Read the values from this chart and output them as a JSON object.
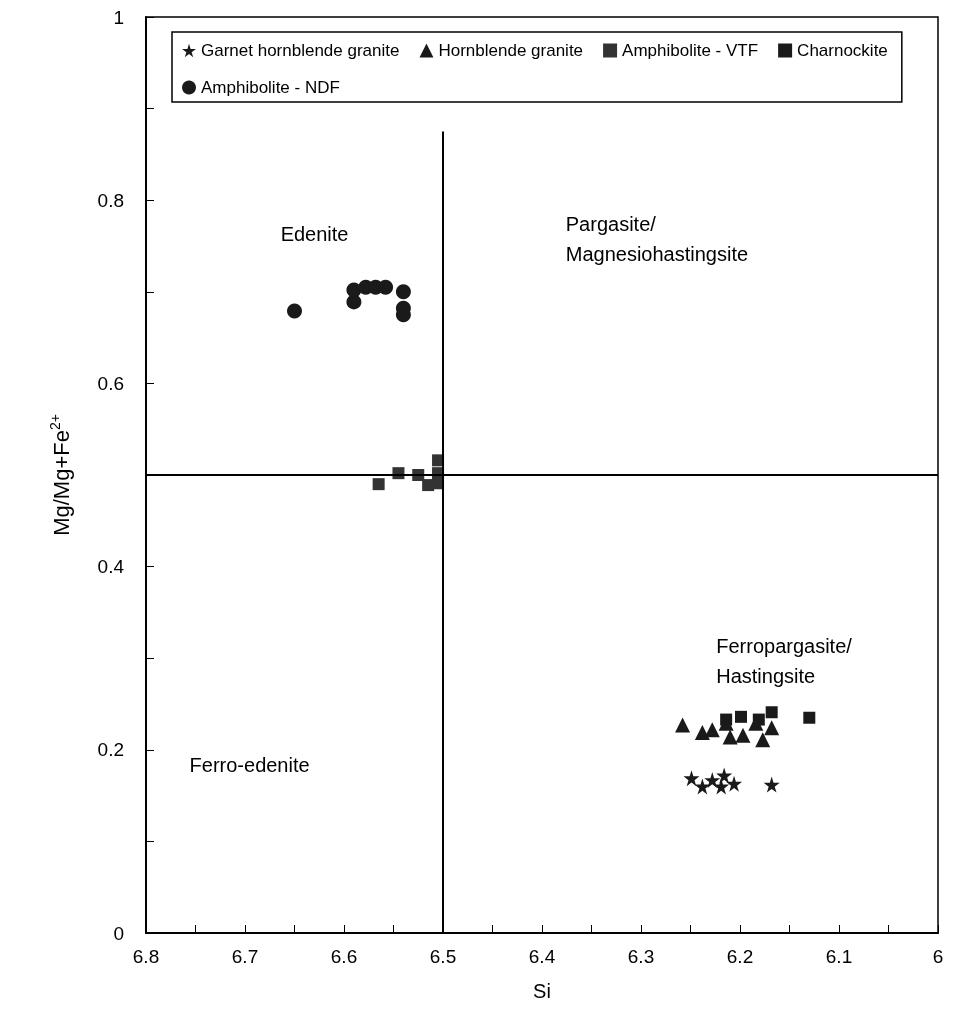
{
  "chart_data": {
    "type": "scatter",
    "xlabel": "Si",
    "ylabel": "Mg/Mg+Fe$^{2+}$",
    "xlim": [
      6.8,
      6
    ],
    "ylim": [
      0,
      1
    ],
    "xticks": [
      6.8,
      {
        "value": 6.75,
        "label": null
      },
      6.7,
      {
        "value": 6.65,
        "label": null
      },
      6.6,
      {
        "value": 6.55,
        "label": null
      },
      6.5,
      {
        "value": 6.45,
        "label": null
      },
      6.4,
      {
        "value": 6.35,
        "label": null
      },
      6.3,
      {
        "value": 6.25,
        "label": null
      },
      6.2,
      {
        "value": 6.15,
        "label": null
      },
      6.1,
      {
        "value": 6.05,
        "label": null
      },
      6
    ],
    "yticks": [
      0,
      {
        "value": 0.1,
        "label": null
      },
      0.2,
      {
        "value": 0.3,
        "label": null
      },
      0.4,
      {
        "value": 0.5,
        "label": null
      },
      0.6,
      {
        "value": 0.7,
        "label": null
      },
      0.8,
      {
        "value": 0.9,
        "label": null
      },
      1
    ],
    "legend": "top",
    "grid": false,
    "series": [
      {
        "name": "Garnet hornblende granite",
        "color": "#1a1a1a",
        "marker": "star",
        "x": [
          6.249,
          6.238,
          6.228,
          6.219,
          6.216,
          6.206,
          6.168
        ],
        "values": [
          0.169,
          0.16,
          0.167,
          0.16,
          0.172,
          0.163,
          0.162
        ]
      },
      {
        "name": "Hornblende granite",
        "color": "#1a1a1a",
        "marker": "triangle",
        "x": [
          6.258,
          6.238,
          6.228,
          6.214,
          6.21,
          6.197,
          6.184,
          6.177,
          6.168
        ],
        "values": [
          0.227,
          0.219,
          0.222,
          0.229,
          0.214,
          0.216,
          0.229,
          0.211,
          0.224
        ]
      },
      {
        "name": "Amphibolite - VTF",
        "color": "#333333",
        "marker": "square",
        "x": [
          6.565,
          6.545,
          6.525,
          6.515,
          6.505,
          6.505,
          6.505
        ],
        "values": [
          0.49,
          0.502,
          0.5,
          0.489,
          0.516,
          0.502,
          0.491
        ]
      },
      {
        "name": "Charnockite",
        "color": "#1a1a1a",
        "marker": "square",
        "x": [
          6.214,
          6.199,
          6.181,
          6.168,
          6.13
        ],
        "values": [
          0.233,
          0.236,
          0.233,
          0.241,
          0.235
        ]
      },
      {
        "name": "Amphibolite - NDF",
        "color": "#1a1a1a",
        "marker": "circle",
        "x": [
          6.65,
          6.59,
          6.59,
          6.578,
          6.568,
          6.558,
          6.54,
          6.54,
          6.54
        ],
        "values": [
          0.679,
          0.689,
          0.702,
          0.705,
          0.705,
          0.705,
          0.7,
          0.682,
          0.675
        ]
      }
    ],
    "ref_lines": [
      {
        "axis": "x",
        "value": 6.5,
        "color": "#000000"
      },
      {
        "axis": "y",
        "value": 0.5,
        "color": "#000000"
      }
    ],
    "annotations": [
      "Edenite",
      "Pargasite/\nMagnesiohastingsite",
      "Ferropargasite/\nHastingsite",
      "Ferro-edenite"
    ]
  }
}
